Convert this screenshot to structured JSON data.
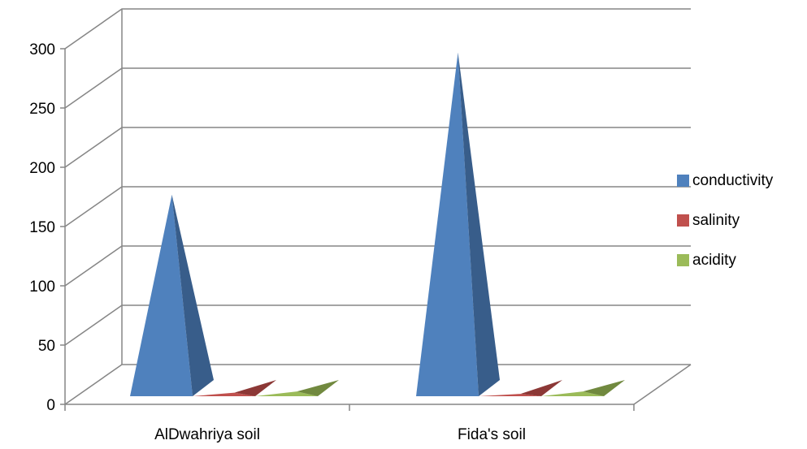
{
  "chart_data": {
    "type": "bar",
    "style": "3d-pyramid",
    "categories": [
      "AlDwahriya soil",
      "Fida's soil"
    ],
    "series": [
      {
        "name": "conductivity",
        "values": [
          170,
          290
        ],
        "color": "#4F81BD",
        "shade": "#385D8A"
      },
      {
        "name": "salinity",
        "values": [
          3,
          2
        ],
        "color": "#C0504D",
        "shade": "#8C3836"
      },
      {
        "name": "acidity",
        "values": [
          4,
          4
        ],
        "color": "#9BBB59",
        "shade": "#71893F"
      }
    ],
    "ylim": [
      0,
      300
    ],
    "yticks": [
      0,
      50,
      100,
      150,
      200,
      250,
      300
    ],
    "ytick_labels": [
      "0",
      "50",
      "100",
      "150",
      "200",
      "250",
      "300"
    ],
    "grid": true,
    "legend_position": "right",
    "title": "",
    "xlabel": "",
    "ylabel": ""
  }
}
